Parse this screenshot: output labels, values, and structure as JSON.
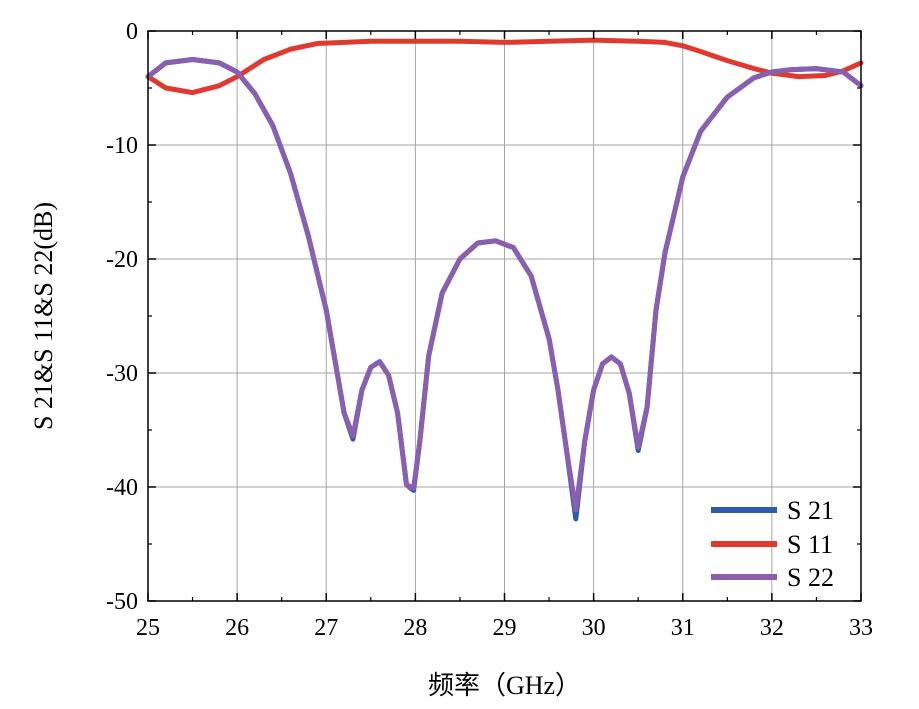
{
  "chart_data": {
    "type": "line",
    "xlabel": "频率（GHz）",
    "ylabel": "S 21&S 11&S 22(dB)",
    "xlim": [
      25,
      33
    ],
    "ylim": [
      -50,
      0
    ],
    "xticks": [
      25,
      26,
      27,
      28,
      29,
      30,
      31,
      32,
      33
    ],
    "yticks": [
      0,
      -10,
      -20,
      -30,
      -40,
      -50
    ],
    "xtick_labels": [
      "25",
      "26",
      "27",
      "28",
      "29",
      "30",
      "31",
      "32",
      "33"
    ],
    "ytick_labels": [
      "0",
      "-10",
      "-20",
      "-30",
      "-40",
      "-50"
    ],
    "grid": true,
    "legend_position": "bottom-right",
    "series": [
      {
        "name": "S 21",
        "color": "#2a5caa",
        "x": [
          25.0,
          25.2,
          25.5,
          25.8,
          26.0,
          26.2,
          26.4,
          26.6,
          26.8,
          27.0,
          27.1,
          27.2,
          27.3,
          27.4,
          27.5,
          27.6,
          27.7,
          27.8,
          27.9,
          27.98,
          28.05,
          28.15,
          28.3,
          28.5,
          28.7,
          28.9,
          29.1,
          29.3,
          29.5,
          29.6,
          29.7,
          29.8,
          29.9,
          30.0,
          30.1,
          30.2,
          30.3,
          30.4,
          30.5,
          30.6,
          30.7,
          30.8,
          31.0,
          31.2,
          31.5,
          31.8,
          32.0,
          32.2,
          32.5,
          32.8,
          33.0
        ],
        "values": [
          -4.0,
          -2.8,
          -2.5,
          -2.8,
          -3.6,
          -5.5,
          -8.3,
          -12.5,
          -18.0,
          -24.5,
          -29.0,
          -33.5,
          -35.8,
          -31.5,
          -29.5,
          -29.0,
          -30.2,
          -33.5,
          -39.8,
          -40.3,
          -36.0,
          -28.5,
          -23.0,
          -20.0,
          -18.6,
          -18.4,
          -19.0,
          -21.5,
          -27.0,
          -31.5,
          -37.0,
          -42.8,
          -36.0,
          -31.5,
          -29.2,
          -28.6,
          -29.2,
          -31.8,
          -36.8,
          -33.0,
          -24.5,
          -19.5,
          -12.8,
          -8.8,
          -5.8,
          -4.1,
          -3.6,
          -3.4,
          -3.3,
          -3.6,
          -4.8
        ]
      },
      {
        "name": "S 11",
        "color": "#e03a30",
        "x": [
          25.0,
          25.2,
          25.5,
          25.8,
          26.0,
          26.3,
          26.6,
          26.9,
          27.2,
          27.5,
          28.0,
          28.5,
          29.0,
          29.5,
          30.0,
          30.5,
          30.8,
          31.0,
          31.2,
          31.5,
          31.8,
          32.0,
          32.3,
          32.6,
          32.8,
          33.0
        ],
        "values": [
          -4.0,
          -5.0,
          -5.4,
          -4.8,
          -4.0,
          -2.5,
          -1.6,
          -1.1,
          -1.0,
          -0.9,
          -0.9,
          -0.9,
          -1.0,
          -0.9,
          -0.8,
          -0.9,
          -1.0,
          -1.3,
          -1.8,
          -2.6,
          -3.3,
          -3.7,
          -4.0,
          -3.9,
          -3.5,
          -2.8
        ]
      },
      {
        "name": "S 22",
        "color": "#8a5fb0",
        "x": [
          25.0,
          25.2,
          25.5,
          25.8,
          26.0,
          26.2,
          26.4,
          26.6,
          26.8,
          27.0,
          27.1,
          27.2,
          27.3,
          27.4,
          27.5,
          27.6,
          27.7,
          27.8,
          27.9,
          27.98,
          28.05,
          28.15,
          28.3,
          28.5,
          28.7,
          28.9,
          29.1,
          29.3,
          29.5,
          29.6,
          29.7,
          29.8,
          29.9,
          30.0,
          30.1,
          30.2,
          30.3,
          30.4,
          30.5,
          30.6,
          30.7,
          30.8,
          31.0,
          31.2,
          31.5,
          31.8,
          32.0,
          32.2,
          32.5,
          32.8,
          33.0
        ],
        "values": [
          -4.0,
          -2.8,
          -2.5,
          -2.8,
          -3.6,
          -5.5,
          -8.3,
          -12.5,
          -18.0,
          -24.5,
          -29.0,
          -33.5,
          -35.5,
          -31.5,
          -29.5,
          -29.0,
          -30.2,
          -33.5,
          -39.8,
          -40.1,
          -36.0,
          -28.5,
          -23.0,
          -20.0,
          -18.6,
          -18.4,
          -19.0,
          -21.5,
          -27.0,
          -31.5,
          -37.0,
          -42.0,
          -36.0,
          -31.5,
          -29.2,
          -28.6,
          -29.2,
          -31.8,
          -36.5,
          -33.0,
          -24.5,
          -19.5,
          -12.8,
          -8.8,
          -5.8,
          -4.1,
          -3.6,
          -3.4,
          -3.3,
          -3.6,
          -4.8
        ]
      }
    ]
  }
}
